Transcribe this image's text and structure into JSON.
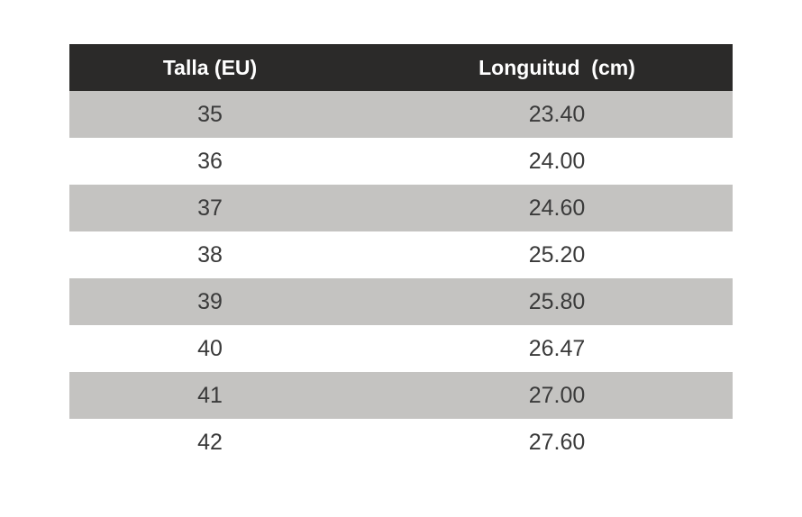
{
  "table": {
    "header": [
      "Talla (EU)",
      "Longuitud  (cm)"
    ],
    "rows": [
      [
        35,
        "23.40"
      ],
      [
        36,
        "24.00"
      ],
      [
        37,
        "24.60"
      ],
      [
        38,
        "25.20"
      ],
      [
        39,
        "25.80"
      ],
      [
        40,
        "26.47"
      ],
      [
        41,
        "27.00"
      ],
      [
        42,
        "27.60"
      ]
    ]
  }
}
